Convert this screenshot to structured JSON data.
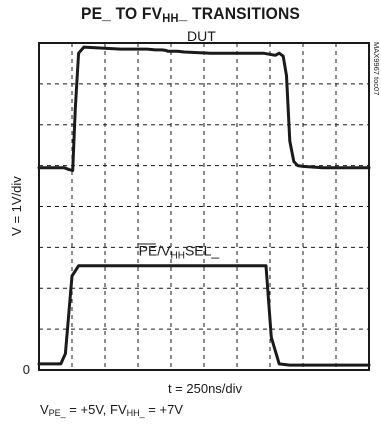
{
  "chart_data": {
    "type": "line",
    "title": {
      "prefix": "PE_ TO FV",
      "sub": "HH",
      "suffix": "_ TRANSITIONS"
    },
    "xlabel": "t = 250ns/div",
    "ylabel": "V = 1V/div",
    "y_zero_label": "0",
    "x_unit_per_div": "250ns",
    "y_unit_per_div": "1V",
    "xlim": [
      0,
      2500
    ],
    "ylim": [
      0,
      8
    ],
    "grid": true,
    "figure_code": "MAX9967 toc07",
    "series": [
      {
        "name": "DUT_",
        "x": [
          0,
          190,
          230,
          255,
          275,
          300,
          340,
          620,
          820,
          880,
          900,
          930,
          960,
          975,
          1000,
          1050,
          1100,
          1300,
          1700,
          1790,
          1820,
          1850,
          1875,
          1900,
          1930,
          1960,
          2000,
          2150,
          2500
        ],
        "y": [
          4.95,
          4.95,
          4.9,
          4.88,
          6.4,
          7.75,
          7.9,
          7.85,
          7.85,
          7.83,
          7.83,
          7.83,
          7.82,
          7.8,
          7.8,
          7.8,
          7.78,
          7.75,
          7.75,
          7.7,
          7.75,
          7.68,
          7.2,
          5.6,
          5.1,
          5.0,
          4.98,
          4.95,
          4.95
        ]
      },
      {
        "name": "PE/VHHSEL_",
        "x": [
          0,
          165,
          200,
          250,
          300,
          500,
          1000,
          1650,
          1720,
          1760,
          1820,
          1900,
          2200,
          2500
        ],
        "y": [
          0.15,
          0.15,
          0.4,
          2.3,
          2.55,
          2.55,
          2.55,
          2.55,
          2.55,
          0.8,
          0.15,
          0.12,
          0.12,
          0.12
        ]
      }
    ],
    "annotations": [
      {
        "target": "DUT_",
        "text": "DUT_",
        "x": 1260,
        "y": 8.05
      },
      {
        "target": "PE/VHHSEL_",
        "text": "PE/VHHSEL_",
        "x": 1060,
        "y": 2.8,
        "parts": {
          "main": "PE/V",
          "sub": "HH",
          "tail": "SEL_",
          "overline": "PE"
        }
      }
    ],
    "footnote": {
      "a_main": "V",
      "a_sub": "PE_",
      "a_val": " = +5V, FV",
      "b_sub": "HH_",
      "b_val": " = +7V"
    }
  }
}
